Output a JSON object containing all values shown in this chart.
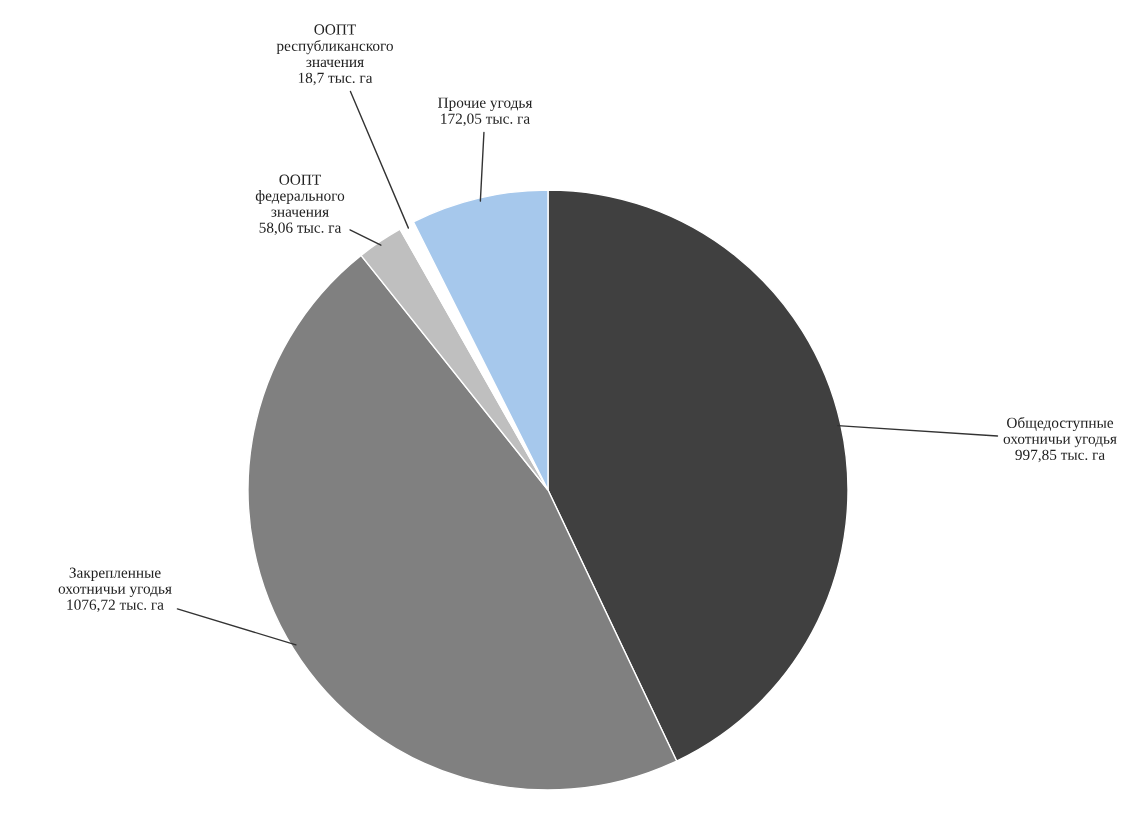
{
  "chart_data": {
    "type": "pie",
    "categories": [
      "Общедоступные\nохотничьи угодья",
      "Закрепленные\nохотничьи угодья",
      "ООПТ\nфедерального\nзначения",
      "ООПТ\nреспубликанского\nзначения",
      "Прочие угодья"
    ],
    "values": [
      997.85,
      1076.72,
      58.06,
      18.7,
      172.05
    ],
    "value_labels": [
      "997,85 тыс. га",
      "1076,72 тыс. га",
      "58,06 тыс. га",
      "18,7 тыс. га",
      "172,05 тыс. га"
    ],
    "colors": [
      "#404040",
      "#808080",
      "#bfbfbf",
      "#ffffff",
      "#a6c8ec"
    ]
  }
}
